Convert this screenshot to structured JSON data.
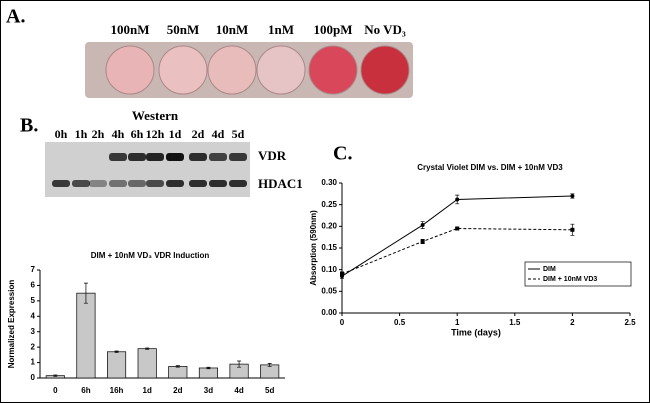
{
  "figure": {
    "panel_a": {
      "label": "A.",
      "wells": [
        "100nM",
        "50nM",
        "10nM",
        "1nM",
        "100pM",
        "No VD₃"
      ]
    },
    "panel_b": {
      "label": "B.",
      "blot_title": "Western",
      "times": [
        "0h",
        "1h",
        "2h",
        "4h",
        "6h",
        "12h",
        "1d",
        "2d",
        "4d",
        "5d"
      ],
      "bands": [
        "VDR",
        "HDAC1"
      ]
    },
    "panel_c": {
      "label": "C."
    }
  },
  "chart_data": [
    {
      "type": "bar",
      "title": "DIM + 10nM VD₃ VDR Induction",
      "y_label": "Normalized Expression",
      "categories": [
        "0",
        "6h",
        "16h",
        "1d",
        "2d",
        "3d",
        "4d",
        "5d"
      ],
      "values": [
        0.15,
        5.5,
        1.7,
        1.9,
        0.75,
        0.65,
        0.9,
        0.85
      ],
      "errors": [
        0.05,
        0.65,
        0.05,
        0.05,
        0.05,
        0.05,
        0.2,
        0.1
      ],
      "color": "#c8c8c8",
      "ylim": [
        0,
        7
      ],
      "yticks": [
        0,
        1,
        2,
        3,
        4,
        5,
        6,
        7
      ]
    },
    {
      "type": "line",
      "title": "Crystal Violet DIM vs. DIM + 10nM VD3",
      "x_label": "Time (days)",
      "y_label": "Absorption (590nm)",
      "x": [
        0,
        0.7,
        1,
        2
      ],
      "series": [
        {
          "name": "DIM",
          "color": "#000000",
          "dash": false,
          "values": [
            0.085,
            0.203,
            0.262,
            0.27
          ],
          "errors": [
            0.005,
            0.008,
            0.01,
            0.005
          ]
        },
        {
          "name": "DIM + 10nM VD3",
          "color": "#000000",
          "dash": true,
          "values": [
            0.09,
            0.165,
            0.195,
            0.192
          ],
          "errors": [
            0.005,
            0.005,
            0.003,
            0.013
          ]
        }
      ],
      "xlim": [
        0,
        2.5
      ],
      "xticks": [
        0,
        0.5,
        1,
        1.5,
        2,
        2.5
      ],
      "ylim": [
        0,
        0.3
      ],
      "yticks": [
        {
          "value": 0,
          "label": "0.00"
        },
        {
          "value": 0.05,
          "label": "0.05"
        },
        {
          "value": 0.1,
          "label": "0.10"
        },
        {
          "value": 0.15,
          "label": "0.15"
        },
        {
          "value": 0.2,
          "label": "0.20"
        },
        {
          "value": 0.25,
          "label": "0.25"
        },
        {
          "value": 0.3,
          "label": "0.30"
        }
      ],
      "legend": "lower right"
    }
  ]
}
